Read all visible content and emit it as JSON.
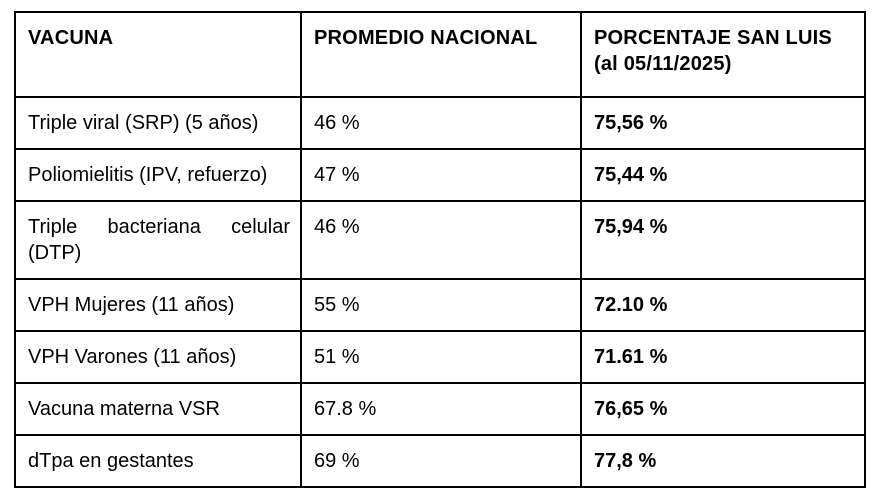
{
  "table": {
    "headers": {
      "vacuna": "VACUNA",
      "promedio_nacional": "PROMEDIO NACIONAL",
      "porcentaje_san_luis": "PORCENTAJE SAN LUIS",
      "porcentaje_san_luis_sub": "(al 05/11/2025)"
    },
    "rows": [
      {
        "vacuna": "Triple viral (SRP) (5 años)",
        "promedio_nacional": "46 %",
        "porcentaje_san_luis": "75,56 %"
      },
      {
        "vacuna": "Poliomielitis (IPV, refuerzo)",
        "promedio_nacional": "47 %",
        "porcentaje_san_luis": "75,44 %"
      },
      {
        "vacuna": "Triple bacteriana celular (DTP)",
        "promedio_nacional": "46 %",
        "porcentaje_san_luis": "75,94 %"
      },
      {
        "vacuna": "VPH Mujeres (11 años)",
        "promedio_nacional": "55 %",
        "porcentaje_san_luis": "72.10 %"
      },
      {
        "vacuna": "VPH Varones (11 años)",
        "promedio_nacional": "51 %",
        "porcentaje_san_luis": "71.61 %"
      },
      {
        "vacuna": "Vacuna materna VSR",
        "promedio_nacional": "67.8 %",
        "porcentaje_san_luis": "76,65 %"
      },
      {
        "vacuna": "dTpa en gestantes",
        "promedio_nacional": "69 %",
        "porcentaje_san_luis": "77,8 %"
      }
    ]
  },
  "colors": {
    "border": "#000000",
    "background": "#ffffff",
    "text": "#000000"
  },
  "chart_data": {
    "type": "table",
    "title": "",
    "columns": [
      "VACUNA",
      "PROMEDIO NACIONAL",
      "PORCENTAJE SAN LUIS (al 05/11/2025)"
    ],
    "categories": [
      "Triple viral (SRP) (5 años)",
      "Poliomielitis (IPV, refuerzo)",
      "Triple bacteriana celular (DTP)",
      "VPH Mujeres (11 años)",
      "VPH Varones (11 años)",
      "Vacuna materna VSR",
      "dTpa en gestantes"
    ],
    "series": [
      {
        "name": "PROMEDIO NACIONAL",
        "values": [
          46,
          47,
          46,
          55,
          51,
          67.8,
          69
        ]
      },
      {
        "name": "PORCENTAJE SAN LUIS (al 05/11/2025)",
        "values": [
          75.56,
          75.44,
          75.94,
          72.1,
          71.61,
          76.65,
          77.8
        ]
      }
    ]
  }
}
